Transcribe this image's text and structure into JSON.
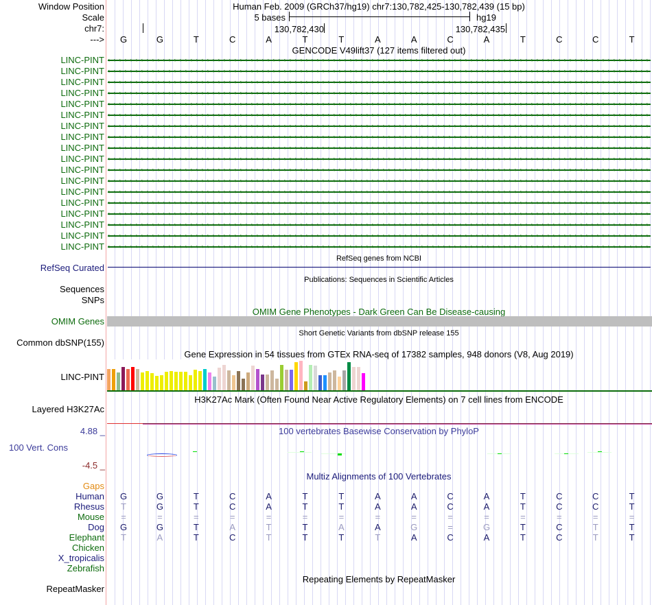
{
  "header": {
    "window_position_label": "Window Position",
    "window_position_text": "Human Feb. 2009 (GRCh37/hg19)   chr7:130,782,425-130,782,439 (15 bp)",
    "scale_label": "Scale",
    "scale_text": "5 bases",
    "assembly": "hg19",
    "chrom_label": "chr7:",
    "coord_1": "130,782,430",
    "coord_2": "130,782,435",
    "strand_label": "--->",
    "bases": [
      "G",
      "G",
      "T",
      "C",
      "A",
      "T",
      "T",
      "A",
      "A",
      "C",
      "A",
      "T",
      "C",
      "C",
      "T"
    ]
  },
  "gencode": {
    "title": "GENCODE V49lift37 (127 items filtered out)",
    "items": [
      "LINC-PINT",
      "LINC-PINT",
      "LINC-PINT",
      "LINC-PINT",
      "LINC-PINT",
      "LINC-PINT",
      "LINC-PINT",
      "LINC-PINT",
      "LINC-PINT",
      "LINC-PINT",
      "LINC-PINT",
      "LINC-PINT",
      "LINC-PINT",
      "LINC-PINT",
      "LINC-PINT",
      "LINC-PINT",
      "LINC-PINT",
      "LINC-PINT"
    ],
    "color": "#0b6b0b"
  },
  "refseq": {
    "title": "RefSeq genes from NCBI",
    "label": "RefSeq Curated",
    "color": "#00006e"
  },
  "publications": {
    "title": "Publications: Sequences in Scientific Articles",
    "label_1": "Sequences",
    "label_2": "SNPs"
  },
  "omim": {
    "title": "OMIM Gene Phenotypes - Dark Green Can Be Disease-causing",
    "label": "OMIM Genes",
    "bar_color": "#bebebe"
  },
  "dbsnp": {
    "title": "Short Genetic Variants from dbSNP release 155",
    "label": "Common dbSNP(155)"
  },
  "gtex": {
    "title": "Gene Expression in 54 tissues from GTEx RNA-seq of 17382 samples, 948 donors (V8, Aug 2019)",
    "label": "LINC-PINT",
    "bars": [
      {
        "color": "#f4a460",
        "value": 0.73
      },
      {
        "color": "#eea00a",
        "value": 0.73
      },
      {
        "color": "#8fbc8f",
        "value": 0.6
      },
      {
        "color": "#8b1a5a",
        "value": 0.78
      },
      {
        "color": "#ee6a50",
        "value": 0.73
      },
      {
        "color": "#ff0000",
        "value": 0.78
      },
      {
        "color": "#cdb79e",
        "value": 0.73
      },
      {
        "color": "#eeee00",
        "value": 0.6
      },
      {
        "color": "#eeee00",
        "value": 0.64
      },
      {
        "color": "#eeee00",
        "value": 0.57
      },
      {
        "color": "#eeee00",
        "value": 0.48
      },
      {
        "color": "#eeee00",
        "value": 0.5
      },
      {
        "color": "#eeee00",
        "value": 0.62
      },
      {
        "color": "#eeee00",
        "value": 0.66
      },
      {
        "color": "#eeee00",
        "value": 0.62
      },
      {
        "color": "#eeee00",
        "value": 0.62
      },
      {
        "color": "#eeee00",
        "value": 0.62
      },
      {
        "color": "#eeee00",
        "value": 0.52
      },
      {
        "color": "#eeee00",
        "value": 0.7
      },
      {
        "color": "#eeee00",
        "value": 0.66
      },
      {
        "color": "#00cdcd",
        "value": 0.73
      },
      {
        "color": "#ee82ee",
        "value": 0.6
      },
      {
        "color": "#9ac0cd",
        "value": 0.46
      },
      {
        "color": "#eed5d2",
        "value": 0.76
      },
      {
        "color": "#eed5d2",
        "value": 0.86
      },
      {
        "color": "#cdb79e",
        "value": 0.68
      },
      {
        "color": "#eec591",
        "value": 0.5
      },
      {
        "color": "#8b7355",
        "value": 0.66
      },
      {
        "color": "#8b7355",
        "value": 0.4
      },
      {
        "color": "#cdaa7d",
        "value": 0.6
      },
      {
        "color": "#eed5d2",
        "value": 0.84
      },
      {
        "color": "#b452cd",
        "value": 0.73
      },
      {
        "color": "#7a378b",
        "value": 0.53
      },
      {
        "color": "#cdb79e",
        "value": 0.53
      },
      {
        "color": "#cdb79e",
        "value": 0.68
      },
      {
        "color": "#cdb79e",
        "value": 0.4
      },
      {
        "color": "#9acd32",
        "value": 0.86
      },
      {
        "color": "#cdb79e",
        "value": 0.7
      },
      {
        "color": "#7b68ee",
        "value": 0.7
      },
      {
        "color": "#ffd700",
        "value": 0.95
      },
      {
        "color": "#ffb6c1",
        "value": 1.0
      },
      {
        "color": "#cd9b1d",
        "value": 0.3
      },
      {
        "color": "#b4eeb4",
        "value": 0.86
      },
      {
        "color": "#d9d9d9",
        "value": 0.84
      },
      {
        "color": "#3a5fcd",
        "value": 0.5
      },
      {
        "color": "#1e90ff",
        "value": 0.5
      },
      {
        "color": "#cdb79e",
        "value": 0.6
      },
      {
        "color": "#cdb79e",
        "value": 0.68
      },
      {
        "color": "#ffd39b",
        "value": 0.46
      },
      {
        "color": "#a6a6a6",
        "value": 0.68
      },
      {
        "color": "#008b45",
        "value": 0.96
      },
      {
        "color": "#eed5d2",
        "value": 0.78
      },
      {
        "color": "#eed5d2",
        "value": 0.78
      },
      {
        "color": "#ff00ff",
        "value": 0.58
      }
    ]
  },
  "h3k27ac": {
    "title": "H3K27Ac Mark (Often Found Near Active Regulatory Elements) on 7 cell lines from ENCODE",
    "label": "Layered H3K27Ac"
  },
  "phylop": {
    "title": "100 vertebrates Basewise Conservation by PhyloP",
    "label": "100 Vert. Cons",
    "max": "4.88 _",
    "min": "-4.5 _"
  },
  "multiz": {
    "title": "Multiz Alignments of 100 Vertebrates",
    "gaps_label": "Gaps",
    "species": [
      {
        "name": "Human",
        "color": "navy",
        "bases": [
          "G",
          "G",
          "T",
          "C",
          "A",
          "T",
          "T",
          "A",
          "A",
          "C",
          "A",
          "T",
          "C",
          "C",
          "T"
        ],
        "faint": []
      },
      {
        "name": "Rhesus",
        "color": "navy",
        "bases": [
          "T",
          "G",
          "T",
          "C",
          "A",
          "T",
          "T",
          "A",
          "A",
          "C",
          "A",
          "T",
          "C",
          "C",
          "T"
        ],
        "faint": [
          0
        ]
      },
      {
        "name": "Mouse",
        "color": "green",
        "bases": [
          "=",
          "=",
          "=",
          "=",
          "=",
          "=",
          "=",
          "=",
          "=",
          "=",
          "=",
          "=",
          "=",
          "=",
          "="
        ],
        "faint": [
          0,
          1,
          2,
          3,
          4,
          5,
          6,
          7,
          8,
          9,
          10,
          11,
          12,
          13,
          14
        ]
      },
      {
        "name": "Dog",
        "color": "navy",
        "bases": [
          "G",
          "G",
          "T",
          "A",
          "T",
          "T",
          "A",
          "A",
          "G",
          "=",
          "G",
          "T",
          "C",
          "T",
          "T"
        ],
        "faint": [
          3,
          4,
          6,
          8,
          9,
          10,
          13
        ]
      },
      {
        "name": "Elephant",
        "color": "green",
        "bases": [
          "T",
          "A",
          "T",
          "C",
          "T",
          "T",
          "T",
          "T",
          "A",
          "C",
          "A",
          "T",
          "C",
          "T",
          "T"
        ],
        "faint": [
          0,
          1,
          4,
          7,
          13
        ]
      },
      {
        "name": "Chicken",
        "color": "green",
        "bases": [],
        "faint": []
      },
      {
        "name": "X_tropicalis",
        "color": "navy",
        "bases": [],
        "faint": []
      },
      {
        "name": "Zebrafish",
        "color": "green",
        "bases": [],
        "faint": []
      }
    ]
  },
  "repeatmasker": {
    "title": "Repeating Elements by RepeatMasker",
    "label": "RepeatMasker"
  }
}
